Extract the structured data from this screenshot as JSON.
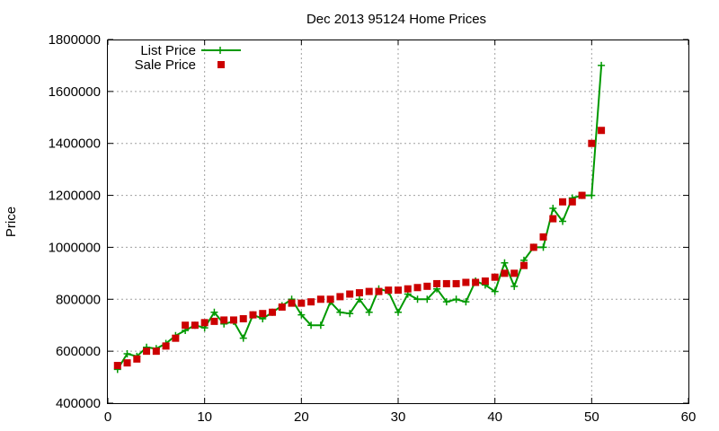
{
  "chart_data": {
    "type": "line",
    "title": "Dec 2013 95124 Home Prices",
    "xlabel": "",
    "ylabel": "Price",
    "xlim": [
      0,
      60
    ],
    "ylim": [
      400000,
      1800000
    ],
    "x_ticks": [
      "0",
      "10",
      "20",
      "30",
      "40",
      "50",
      "60"
    ],
    "y_ticks": [
      "400000",
      "600000",
      "800000",
      "1000000",
      "1200000",
      "1400000",
      "1600000",
      "1800000"
    ],
    "grid": true,
    "legend_position": "top-left",
    "series": [
      {
        "name": "List Price",
        "style": "line+cross",
        "color": "#009900",
        "x": [
          1,
          2,
          3,
          4,
          5,
          6,
          7,
          8,
          9,
          10,
          11,
          12,
          13,
          14,
          15,
          16,
          17,
          18,
          19,
          20,
          21,
          22,
          23,
          24,
          25,
          26,
          27,
          28,
          29,
          30,
          31,
          32,
          33,
          34,
          35,
          36,
          37,
          38,
          39,
          40,
          41,
          42,
          43,
          44,
          45,
          46,
          47,
          48,
          49,
          50,
          51
        ],
        "y": [
          530000,
          590000,
          580000,
          615000,
          610000,
          630000,
          660000,
          680000,
          700000,
          690000,
          750000,
          705000,
          715000,
          650000,
          740000,
          725000,
          750000,
          775000,
          800000,
          740000,
          700000,
          700000,
          790000,
          750000,
          745000,
          800000,
          750000,
          840000,
          830000,
          750000,
          820000,
          800000,
          800000,
          840000,
          790000,
          800000,
          790000,
          870000,
          855000,
          830000,
          940000,
          850000,
          950000,
          1000000,
          1000000,
          1150000,
          1100000,
          1190000,
          1200000,
          1200000,
          1700000
        ]
      },
      {
        "name": "Sale Price",
        "style": "square",
        "color": "#cc0000",
        "x": [
          1,
          2,
          3,
          4,
          5,
          6,
          7,
          8,
          9,
          10,
          11,
          12,
          13,
          14,
          15,
          16,
          17,
          18,
          19,
          20,
          21,
          22,
          23,
          24,
          25,
          26,
          27,
          28,
          29,
          30,
          31,
          32,
          33,
          34,
          35,
          36,
          37,
          38,
          39,
          40,
          41,
          42,
          43,
          44,
          45,
          46,
          47,
          48,
          49,
          50,
          51
        ],
        "y": [
          545000,
          555000,
          570000,
          600000,
          600000,
          620000,
          650000,
          700000,
          700000,
          710000,
          715000,
          720000,
          720000,
          725000,
          740000,
          745000,
          750000,
          770000,
          785000,
          785000,
          790000,
          800000,
          800000,
          810000,
          820000,
          825000,
          830000,
          830000,
          835000,
          835000,
          840000,
          845000,
          850000,
          860000,
          860000,
          860000,
          865000,
          865000,
          870000,
          885000,
          900000,
          900000,
          930000,
          1000000,
          1040000,
          1110000,
          1175000,
          1175000,
          1200000,
          1400000,
          1450000
        ]
      }
    ]
  }
}
